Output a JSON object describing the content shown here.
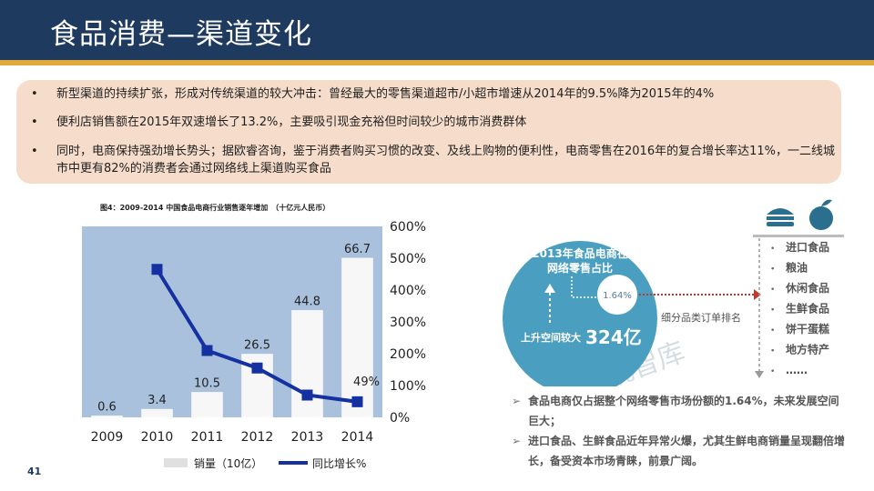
{
  "slide": {
    "title": "食品消费—渠道变化",
    "page_number": "41"
  },
  "bullets": [
    {
      "marker": "•",
      "text": "新型渠道的持续扩张，形成对传统渠道的较大冲击：曾经最大的零售渠道超市/小超市增速从2014年的9.5%降为2015年的4%"
    },
    {
      "marker": "•",
      "text": "便利店销售额在2015年双速增长了13.2%，主要吸引现金充裕但时间较少的城市消费群体"
    },
    {
      "marker": "•",
      "text": "同时，电商保持强劲增长势头；据欧睿咨询，鉴于消费者购买习惯的改变、及线上购物的便利性，电商零售在2016年的复合增长率达11%，一二线城市中更有82%的消费者会通过网络线上渠道购买食品"
    }
  ],
  "chart_data": {
    "type": "bar",
    "title": "图4：2009-2014 中国食品电商行业销售逐年增加　（十亿元人民币）",
    "categories": [
      "2009",
      "2010",
      "2011",
      "2012",
      "2013",
      "2014"
    ],
    "series": [
      {
        "name": "销量（10亿）",
        "type": "bar",
        "axis": "left",
        "values": [
          0.6,
          3.4,
          10.5,
          26.5,
          44.8,
          66.7
        ],
        "labels": [
          "0.6",
          "3.4",
          "10.5",
          "26.5",
          "44.8",
          "66.7"
        ]
      },
      {
        "name": "同比增长%",
        "type": "line",
        "axis": "right",
        "values": [
          null,
          465,
          210,
          155,
          70,
          49
        ],
        "labels": [
          "",
          "",
          "",
          "",
          "",
          "49%"
        ]
      }
    ],
    "ylim_left": [
      0,
      80
    ],
    "left_ticks": [
      "0",
      "10",
      "20",
      "30",
      "40",
      "50",
      "60",
      "70",
      "80"
    ],
    "ylim_right": [
      0,
      600
    ],
    "right_ticks": [
      "0%",
      "100%",
      "200%",
      "300%",
      "400%",
      "500%",
      "600%"
    ],
    "colors": {
      "plot_bg": "#a9c1dd",
      "bar": "#f7f7f7",
      "line": "#1530a0"
    }
  },
  "infographic": {
    "circle_title_line1": "2013年食品电商在",
    "circle_title_line2": "网络零售占比",
    "share_value": "1.64%",
    "growth_label": "上升空间较大",
    "growth_value": "324亿",
    "ranking_label": "细分品类订单排名",
    "watermark": "易观智库",
    "categories": [
      "进口食品",
      "粮油",
      "休闲食品",
      "生鲜食品",
      "饼干蛋糕",
      "地方特产",
      "……"
    ],
    "icon_burger": "burger-icon",
    "icon_apple": "apple-icon",
    "colors": {
      "circle": "#4a9fc0",
      "arrow": "#c0392b"
    }
  },
  "notes": [
    {
      "marker": "➢",
      "text": "食品电商仅占据整个网络零售市场份额的1.64%，未来发展空间巨大；"
    },
    {
      "marker": "➢",
      "text": "进口食品、生鲜食品近年异常火爆，尤其生鲜电商销量呈现翻倍增长，备受资本市场青睐，前景广阔。"
    }
  ]
}
